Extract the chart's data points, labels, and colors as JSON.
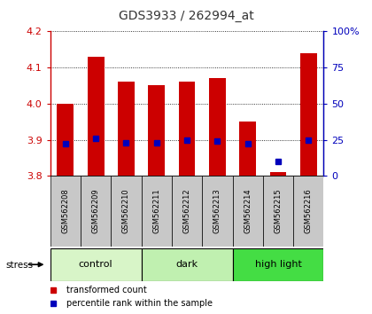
{
  "title": "GDS3933 / 262994_at",
  "samples": [
    "GSM562208",
    "GSM562209",
    "GSM562210",
    "GSM562211",
    "GSM562212",
    "GSM562213",
    "GSM562214",
    "GSM562215",
    "GSM562216"
  ],
  "red_values": [
    4.0,
    4.13,
    4.06,
    4.05,
    4.06,
    4.07,
    3.95,
    3.81,
    4.14
  ],
  "blue_values": [
    22,
    26,
    23,
    23,
    25,
    24,
    22,
    10,
    25
  ],
  "bar_bottom": 3.8,
  "ylim": [
    3.8,
    4.2
  ],
  "yticks_left": [
    3.8,
    3.9,
    4.0,
    4.1,
    4.2
  ],
  "yticks_right": [
    0,
    25,
    50,
    75,
    100
  ],
  "groups": [
    {
      "label": "control",
      "indices": [
        0,
        1,
        2
      ],
      "color": "#d8f5c8"
    },
    {
      "label": "dark",
      "indices": [
        3,
        4,
        5
      ],
      "color": "#c0f0b0"
    },
    {
      "label": "high light",
      "indices": [
        6,
        7,
        8
      ],
      "color": "#44dd44"
    }
  ],
  "stress_label": "stress",
  "red_color": "#cc0000",
  "blue_color": "#0000bb",
  "bar_width": 0.55,
  "blue_marker_size": 5,
  "left_axis_color": "#cc0000",
  "right_axis_color": "#0000bb",
  "title_color": "#333333",
  "xtick_bg": "#c8c8c8"
}
